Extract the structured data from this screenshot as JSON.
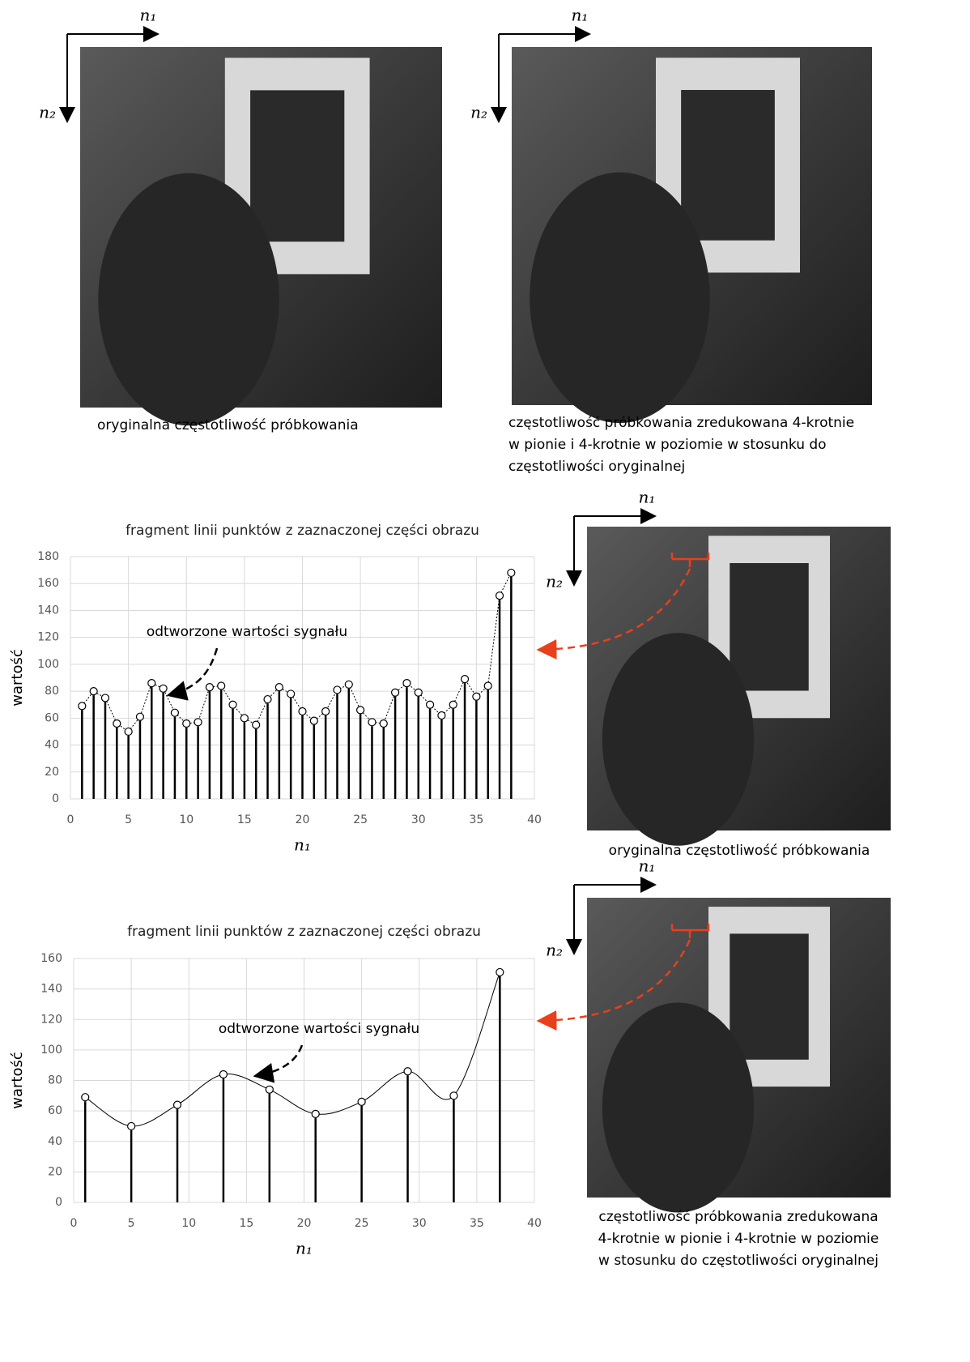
{
  "chart_data": [
    {
      "type": "stem",
      "title": "fragment linii punktów z zaznaczonej części obrazu",
      "x_label": "n₁",
      "y_label": "wartość",
      "annotation": "odtworzone wartości sygnału",
      "curve": "linear",
      "grid": true,
      "xlim": [
        0,
        40
      ],
      "xticks": [
        0,
        5,
        10,
        15,
        20,
        25,
        30,
        35,
        40
      ],
      "ylim": [
        0,
        180
      ],
      "yticks": [
        0,
        20,
        40,
        60,
        80,
        100,
        120,
        140,
        160,
        180
      ],
      "x": [
        1,
        2,
        3,
        4,
        5,
        6,
        7,
        8,
        9,
        10,
        11,
        12,
        13,
        14,
        15,
        16,
        17,
        18,
        19,
        20,
        21,
        22,
        23,
        24,
        25,
        26,
        27,
        28,
        29,
        30,
        31,
        32,
        33,
        34,
        35,
        36,
        37,
        38
      ],
      "series": [
        {
          "color": "#000000",
          "values": [
            69,
            80,
            75,
            56,
            50,
            61,
            86,
            82,
            64,
            56,
            57,
            83,
            84,
            70,
            60,
            55,
            74,
            83,
            78,
            65,
            58,
            65,
            81,
            85,
            66,
            57,
            56,
            79,
            86,
            79,
            70,
            62,
            70,
            89,
            76,
            84,
            151,
            168
          ]
        }
      ]
    },
    {
      "type": "stem",
      "title": "fragment linii punktów z zaznaczonej części obrazu",
      "x_label": "n₁",
      "y_label": "wartość",
      "annotation": "odtworzone wartości sygnału",
      "curve": "spline",
      "grid": true,
      "xlim": [
        0,
        40
      ],
      "xticks": [
        0,
        5,
        10,
        15,
        20,
        25,
        30,
        35,
        40
      ],
      "ylim": [
        0,
        160
      ],
      "yticks": [
        0,
        20,
        40,
        60,
        80,
        100,
        120,
        140,
        160
      ],
      "x": [
        1,
        5,
        9,
        13,
        17,
        21,
        25,
        29,
        33,
        37
      ],
      "series": [
        {
          "color": "#000000",
          "values": [
            69,
            50,
            64,
            84,
            74,
            58,
            66,
            86,
            70,
            151
          ]
        }
      ]
    }
  ],
  "panels": [
    {
      "axis_x": "n₁",
      "axis_y": "n₂",
      "caption": [
        "oryginalna częstotliwość próbkowania"
      ]
    },
    {
      "axis_x": "n₁",
      "axis_y": "n₂",
      "caption": [
        "częstotliwość próbkowania zredukowana 4-krotnie",
        "w pionie i 4-krotnie w poziomie w stosunku do",
        "częstotliwości oryginalnej"
      ]
    },
    {
      "axis_x": "n₁",
      "axis_y": "n₂",
      "caption": [
        "oryginalna częstotliwość próbkowania"
      ]
    },
    {
      "axis_x": "n₁",
      "axis_y": "n₂",
      "caption": [
        "częstotliwość próbkowania zredukowana",
        "4-krotnie w pionie i 4-krotnie w poziomie",
        "w stosunku do częstotliwości oryginalnej"
      ]
    }
  ]
}
